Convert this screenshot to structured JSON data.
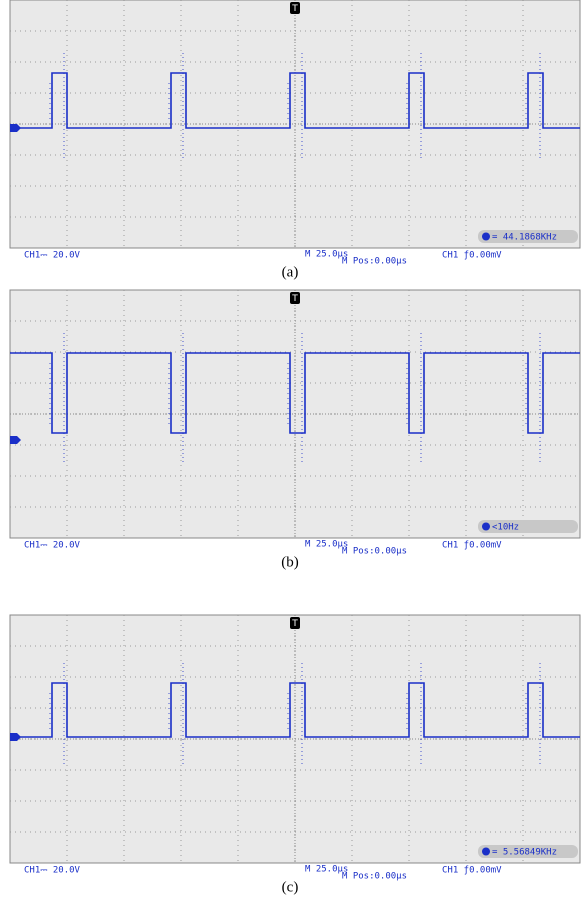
{
  "panels": [
    {
      "channel": "CH1⎓ 20.0V",
      "timebase": "M 25.0μs",
      "position": "M Pos:0.00μs",
      "trigger": "CH1 ƒ0.00mV",
      "frequency": "= 44.1868KHz",
      "caption": "(a)"
    },
    {
      "channel": "CH1⎓ 20.0V",
      "timebase": "M 25.0μs",
      "position": "M Pos:0.00μs",
      "trigger": "CH1 ƒ0.00mV",
      "frequency": "<10Hz",
      "caption": "(b)"
    },
    {
      "channel": "CH1⎓ 20.0V",
      "timebase": "M 25.0μs",
      "position": "M Pos:0.00μs",
      "trigger": "CH1 ƒ0.00mV",
      "frequency": "= 5.56849KHz",
      "caption": "(c)"
    }
  ]
}
